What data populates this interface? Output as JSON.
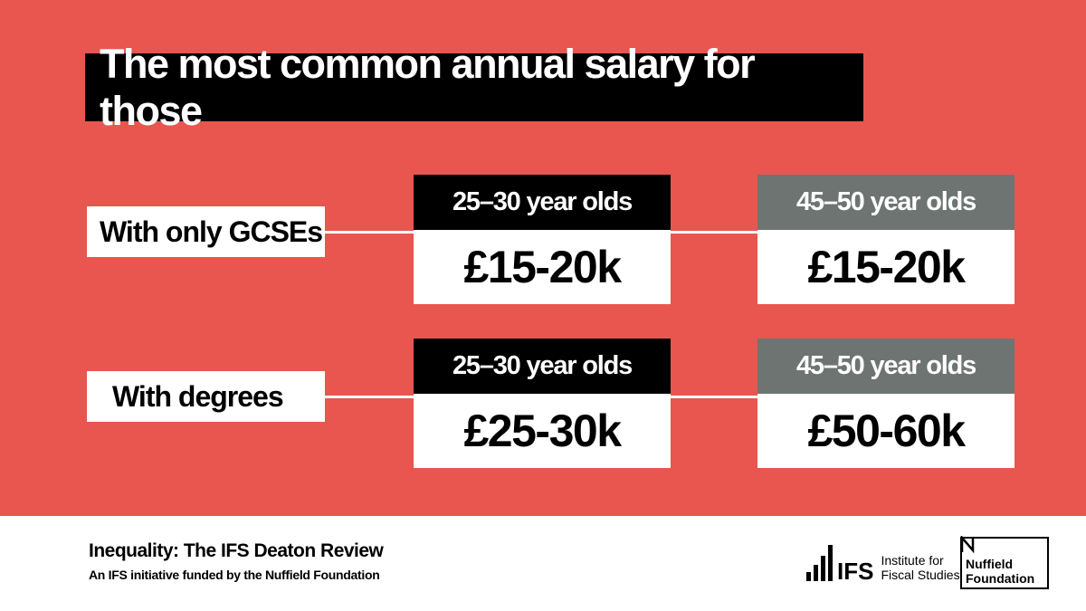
{
  "title": "The most common annual salary for those",
  "rows": [
    {
      "label": "With only GCSEs",
      "cards": [
        {
          "age": "25–30 year olds",
          "value": "£15-20k"
        },
        {
          "age": "45–50 year olds",
          "value": "£15-20k"
        }
      ]
    },
    {
      "label": "With degrees",
      "cards": [
        {
          "age": "25–30 year olds",
          "value": "£25-30k"
        },
        {
          "age": "45–50 year olds",
          "value": "£50-60k"
        }
      ]
    }
  ],
  "footer": {
    "title": "Inequality: The IFS Deaton Review",
    "subtitle": "An IFS initiative funded by the Nuffield Foundation",
    "ifs_mark": "IFS",
    "ifs_line1": "Institute for",
    "ifs_line2": "Fiscal Studies",
    "nuffield_line1": "Nuffield",
    "nuffield_line2": "Foundation"
  },
  "colors": {
    "background": "#e8564f",
    "dark_header": "#000000",
    "grey_header": "#6e7472"
  }
}
